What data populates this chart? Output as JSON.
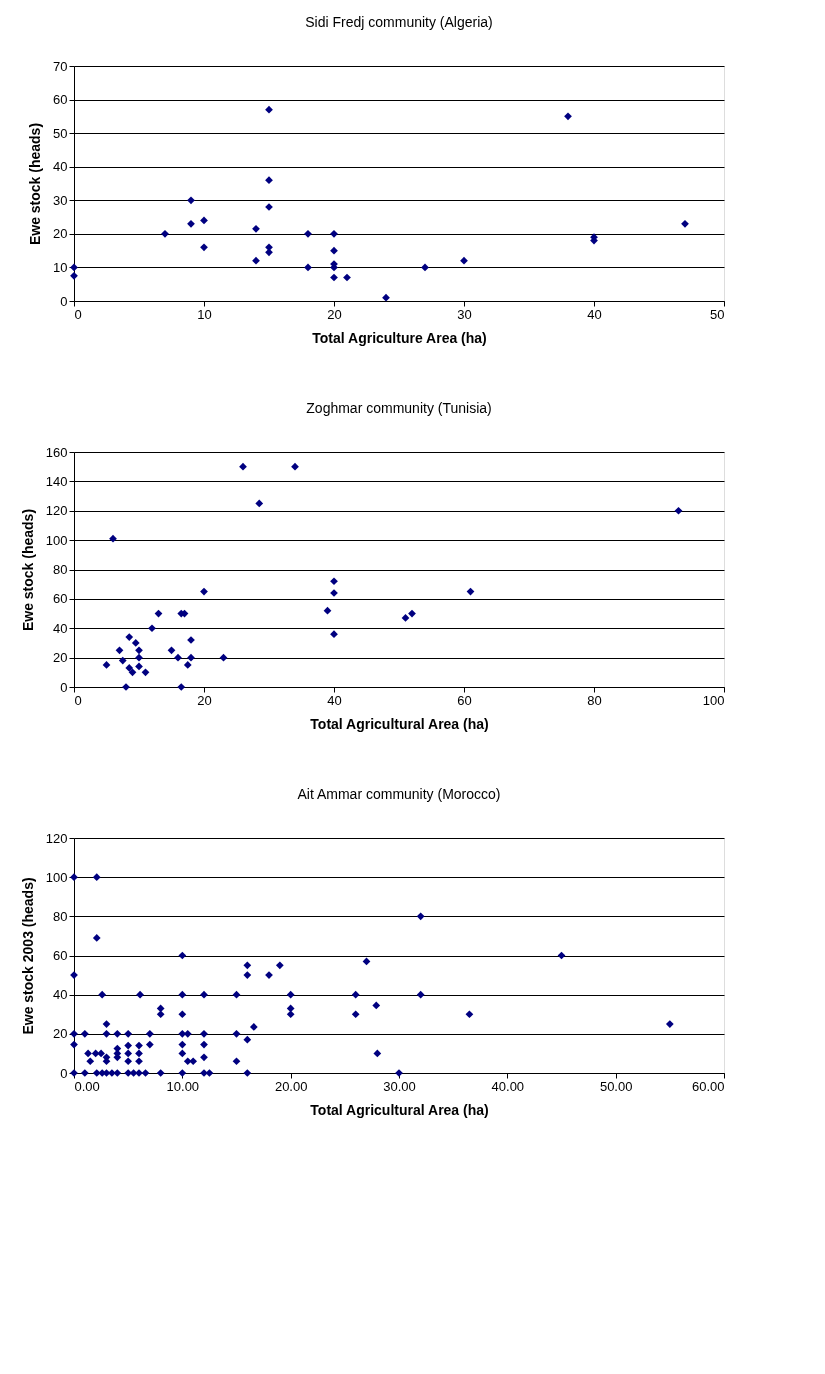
{
  "chart_data": [
    {
      "type": "scatter",
      "title": "Sidi Fredj community (Algeria)",
      "xlabel": "Total Agriculture Area (ha)",
      "ylabel": "Ewe stock (heads)",
      "marker": "diamond",
      "grid": "y",
      "xlim": [
        0,
        50
      ],
      "xticks": [
        0,
        10,
        20,
        30,
        40,
        50
      ],
      "ylim": [
        0,
        70
      ],
      "yticks": [
        0,
        10,
        20,
        30,
        40,
        50,
        60,
        70
      ],
      "x": [
        0,
        0,
        7,
        9,
        9,
        10,
        10,
        14,
        14,
        15,
        15,
        15,
        15,
        15,
        18,
        18,
        20,
        20,
        20,
        20,
        20,
        21,
        24,
        27,
        30,
        38,
        40,
        40,
        47
      ],
      "series": [
        {
          "color": "#000080",
          "values": [
            10,
            7.5,
            20,
            30,
            23,
            24,
            16,
            21.5,
            12,
            57,
            36,
            28,
            16,
            14.5,
            20,
            10,
            20,
            15,
            11,
            10,
            7,
            7,
            1,
            10,
            12,
            55,
            19,
            18,
            23
          ]
        }
      ]
    },
    {
      "type": "scatter",
      "title": "Zoghmar community (Tunisia)",
      "xlabel": "Total Agricultural Area (ha)",
      "ylabel": "Ewe stock (heads)",
      "marker": "diamond",
      "grid": "y",
      "xlim": [
        0,
        100
      ],
      "xticks": [
        0,
        20,
        40,
        60,
        80,
        100
      ],
      "ylim": [
        0,
        160
      ],
      "yticks": [
        0,
        20,
        40,
        60,
        80,
        100,
        120,
        140,
        160
      ],
      "x": [
        5,
        6,
        7,
        7.5,
        8,
        8.5,
        8.5,
        9,
        9.5,
        10,
        10,
        10,
        12,
        11,
        13,
        15,
        16,
        16.5,
        17,
        16.5,
        17.5,
        18,
        18,
        20,
        23,
        26,
        28.5,
        34,
        39,
        40,
        40,
        40,
        51,
        52,
        61,
        93
      ],
      "series": [
        {
          "color": "#000080",
          "values": [
            15,
            101,
            25,
            18,
            0,
            34,
            13,
            10,
            30,
            25,
            20,
            14,
            40,
            10,
            50,
            25,
            20,
            50,
            50,
            0,
            15,
            32,
            20,
            65,
            20,
            150,
            125,
            150,
            52,
            72,
            64,
            36,
            47,
            50,
            65,
            120
          ]
        }
      ]
    },
    {
      "type": "scatter",
      "title": "Ait Ammar community (Morocco)",
      "xlabel": "Total Agricultural Area (ha)",
      "ylabel": "Ewe stock 2003 (heads)",
      "marker": "diamond",
      "grid": "y",
      "xlim": [
        0,
        60
      ],
      "xticks": [
        {
          "value": 0,
          "label": "0.00"
        },
        {
          "value": 10,
          "label": "10.00"
        },
        {
          "value": 20,
          "label": "20.00"
        },
        {
          "value": 30,
          "label": "30.00"
        },
        {
          "value": 40,
          "label": "40.00"
        },
        {
          "value": 50,
          "label": "50.00"
        },
        {
          "value": 60,
          "label": "60.00"
        }
      ],
      "ylim": [
        0,
        120
      ],
      "yticks": [
        0,
        20,
        40,
        60,
        80,
        100,
        120
      ],
      "x": [
        0,
        2.1,
        2.1,
        10,
        16,
        16,
        0,
        18,
        19,
        2.6,
        6.1,
        10,
        12,
        15,
        20,
        26,
        8,
        10,
        20,
        26,
        8,
        20,
        3,
        16.6,
        0,
        1,
        3,
        4,
        5,
        7,
        10,
        10.5,
        12,
        15,
        16,
        0,
        7,
        10,
        12,
        4,
        5,
        6,
        1.3,
        2,
        2.5,
        4,
        5,
        6,
        10,
        3,
        4,
        12,
        1.5,
        3,
        5,
        6,
        10.5,
        11,
        15,
        0,
        1,
        2.1,
        2.6,
        3,
        3.5,
        4,
        5,
        5.5,
        6,
        6.6,
        8,
        10,
        12,
        12.5,
        16,
        32,
        27,
        45,
        32,
        27.9,
        36.5,
        55,
        28,
        30
      ],
      "series": [
        {
          "color": "#000080",
          "values": [
            100,
            100,
            69,
            60,
            55,
            50,
            50,
            50,
            55,
            40,
            40,
            40,
            40,
            40,
            40,
            40,
            30,
            30,
            30,
            30,
            33,
            33,
            25,
            23.5,
            20,
            20,
            20,
            20,
            20,
            20,
            20,
            20,
            20,
            20,
            17,
            14.5,
            14.5,
            14.5,
            14.5,
            12.5,
            14,
            14,
            10,
            10,
            10,
            10,
            10,
            10,
            10,
            8,
            8,
            8,
            6,
            6,
            6,
            6,
            6,
            6,
            6,
            0,
            0,
            0,
            0,
            0,
            0,
            0,
            0,
            0,
            0,
            0,
            0,
            0,
            0,
            0,
            0,
            80,
            57,
            60,
            40,
            34.5,
            30,
            25,
            10,
            0
          ]
        }
      ]
    }
  ]
}
